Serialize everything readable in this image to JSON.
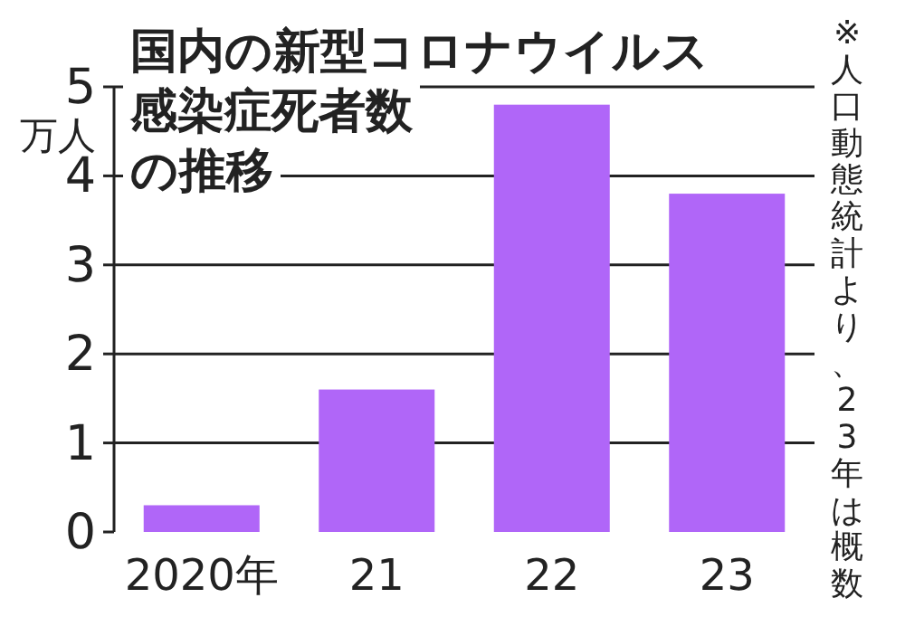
{
  "chart_data": {
    "type": "bar",
    "title": "国内の新型コロナウイルス感染症死者数の推移",
    "ylabel": "万人",
    "categories": [
      "2020年",
      "21",
      "22",
      "23"
    ],
    "values": [
      0.3,
      1.6,
      4.8,
      3.8
    ],
    "color": "#b066f8",
    "ylim": [
      0,
      5
    ],
    "yticks": [
      0,
      1,
      2,
      3,
      4,
      5
    ],
    "grid": "y",
    "annotations": [
      "※人口動態統計より、23年は概数"
    ]
  }
}
